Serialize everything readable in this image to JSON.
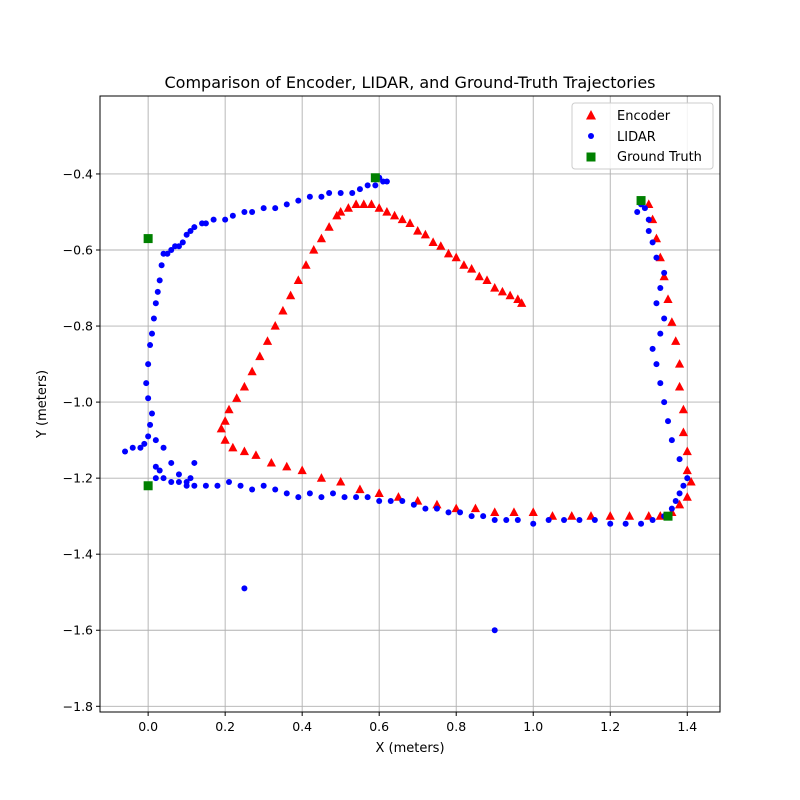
{
  "chart_data": {
    "type": "scatter",
    "title": "Comparison of Encoder, LIDAR, and Ground-Truth Trajectories",
    "xlabel": "X (meters)",
    "ylabel": "Y (meters)",
    "xlim": [
      -0.125,
      1.485
    ],
    "ylim": [
      -1.815,
      -0.195
    ],
    "xticks": [
      0.0,
      0.2,
      0.4,
      0.6,
      0.8,
      1.0,
      1.2,
      1.4
    ],
    "xtick_labels": [
      "0.0",
      "0.2",
      "0.4",
      "0.6",
      "0.8",
      "1.0",
      "1.2",
      "1.4"
    ],
    "yticks": [
      -1.8,
      -1.6,
      -1.4,
      -1.2,
      -1.0,
      -0.8,
      -0.6,
      -0.4
    ],
    "ytick_labels": [
      "−1.8",
      "−1.6",
      "−1.4",
      "−1.2",
      "−1.0",
      "−0.8",
      "−0.6",
      "−0.4"
    ],
    "grid": true,
    "legend_position": "top-right",
    "series": [
      {
        "name": "Encoder",
        "marker": "triangle",
        "color": "#ff0000",
        "x": [
          0.97,
          0.96,
          0.94,
          0.92,
          0.9,
          0.88,
          0.86,
          0.84,
          0.82,
          0.8,
          0.78,
          0.76,
          0.74,
          0.72,
          0.7,
          0.68,
          0.66,
          0.64,
          0.62,
          0.6,
          0.58,
          0.56,
          0.54,
          0.52,
          0.5,
          0.49,
          0.47,
          0.45,
          0.43,
          0.41,
          0.39,
          0.37,
          0.35,
          0.33,
          0.31,
          0.29,
          0.27,
          0.25,
          0.23,
          0.21,
          0.2,
          0.19,
          0.2,
          0.22,
          0.25,
          0.28,
          0.32,
          0.36,
          0.4,
          0.45,
          0.5,
          0.55,
          0.6,
          0.65,
          0.7,
          0.75,
          0.8,
          0.85,
          0.9,
          0.95,
          1.0,
          1.05,
          1.1,
          1.15,
          1.2,
          1.25,
          1.3,
          1.33,
          1.36,
          1.38,
          1.4,
          1.41,
          1.4,
          1.4,
          1.39,
          1.39,
          1.38,
          1.38,
          1.37,
          1.36,
          1.35,
          1.34,
          1.33,
          1.32,
          1.31,
          1.3
        ],
        "y": [
          -0.74,
          -0.73,
          -0.72,
          -0.71,
          -0.7,
          -0.68,
          -0.67,
          -0.65,
          -0.64,
          -0.62,
          -0.61,
          -0.59,
          -0.58,
          -0.56,
          -0.55,
          -0.53,
          -0.52,
          -0.51,
          -0.5,
          -0.49,
          -0.48,
          -0.48,
          -0.48,
          -0.49,
          -0.5,
          -0.51,
          -0.54,
          -0.57,
          -0.6,
          -0.64,
          -0.68,
          -0.72,
          -0.76,
          -0.8,
          -0.84,
          -0.88,
          -0.92,
          -0.96,
          -0.99,
          -1.02,
          -1.05,
          -1.07,
          -1.1,
          -1.12,
          -1.13,
          -1.14,
          -1.16,
          -1.17,
          -1.18,
          -1.2,
          -1.21,
          -1.23,
          -1.24,
          -1.25,
          -1.26,
          -1.27,
          -1.28,
          -1.28,
          -1.29,
          -1.29,
          -1.29,
          -1.3,
          -1.3,
          -1.3,
          -1.3,
          -1.3,
          -1.3,
          -1.3,
          -1.29,
          -1.27,
          -1.25,
          -1.21,
          -1.18,
          -1.13,
          -1.08,
          -1.02,
          -0.96,
          -0.9,
          -0.84,
          -0.79,
          -0.73,
          -0.67,
          -0.62,
          -0.57,
          -0.52,
          -0.48
        ]
      },
      {
        "name": "LIDAR",
        "marker": "circle",
        "color": "#0000ff",
        "x": [
          0.6,
          0.61,
          0.62,
          0.59,
          0.6,
          0.57,
          0.55,
          0.53,
          0.5,
          0.47,
          0.45,
          0.42,
          0.39,
          0.36,
          0.33,
          0.3,
          0.27,
          0.25,
          0.22,
          0.2,
          0.17,
          0.15,
          0.14,
          0.12,
          0.11,
          0.1,
          0.09,
          0.08,
          0.07,
          0.06,
          0.05,
          0.04,
          0.035,
          0.03,
          0.025,
          0.02,
          0.015,
          0.01,
          0.005,
          0.0,
          -0.005,
          0.0,
          0.01,
          0.005,
          0.0,
          -0.01,
          -0.02,
          -0.04,
          -0.06,
          0.02,
          0.04,
          0.06,
          0.08,
          0.1,
          0.12,
          0.15,
          0.18,
          0.21,
          0.24,
          0.27,
          0.3,
          0.33,
          0.36,
          0.39,
          0.42,
          0.45,
          0.48,
          0.51,
          0.54,
          0.57,
          0.6,
          0.63,
          0.66,
          0.69,
          0.72,
          0.75,
          0.78,
          0.81,
          0.84,
          0.87,
          0.9,
          0.93,
          0.96,
          1.0,
          1.04,
          1.08,
          1.12,
          1.16,
          1.2,
          1.24,
          1.28,
          1.31,
          1.34,
          1.36,
          1.37,
          1.38,
          1.39,
          1.4,
          1.38,
          1.36,
          1.35,
          1.34,
          1.33,
          1.32,
          1.31,
          1.33,
          1.34,
          1.32,
          1.33,
          1.34,
          1.32,
          1.31,
          1.3,
          1.3,
          1.29,
          1.28,
          1.27,
          0.25,
          0.9,
          0.06,
          0.08,
          0.1,
          0.03,
          0.02,
          0.11,
          0.12,
          0.04,
          0.02
        ],
        "y": [
          -0.41,
          -0.42,
          -0.42,
          -0.43,
          -0.41,
          -0.43,
          -0.44,
          -0.45,
          -0.45,
          -0.45,
          -0.46,
          -0.46,
          -0.47,
          -0.48,
          -0.49,
          -0.49,
          -0.5,
          -0.5,
          -0.51,
          -0.52,
          -0.52,
          -0.53,
          -0.53,
          -0.54,
          -0.55,
          -0.56,
          -0.58,
          -0.59,
          -0.59,
          -0.6,
          -0.61,
          -0.61,
          -0.64,
          -0.68,
          -0.71,
          -0.74,
          -0.78,
          -0.82,
          -0.85,
          -0.9,
          -0.95,
          -0.99,
          -1.03,
          -1.06,
          -1.09,
          -1.11,
          -1.12,
          -1.12,
          -1.13,
          -1.2,
          -1.2,
          -1.21,
          -1.21,
          -1.22,
          -1.22,
          -1.22,
          -1.22,
          -1.21,
          -1.22,
          -1.23,
          -1.22,
          -1.23,
          -1.24,
          -1.25,
          -1.24,
          -1.25,
          -1.24,
          -1.25,
          -1.25,
          -1.25,
          -1.26,
          -1.26,
          -1.26,
          -1.27,
          -1.28,
          -1.28,
          -1.29,
          -1.29,
          -1.3,
          -1.3,
          -1.31,
          -1.31,
          -1.31,
          -1.32,
          -1.31,
          -1.31,
          -1.31,
          -1.31,
          -1.32,
          -1.32,
          -1.32,
          -1.31,
          -1.3,
          -1.28,
          -1.26,
          -1.24,
          -1.22,
          -1.2,
          -1.15,
          -1.1,
          -1.05,
          -1.0,
          -0.95,
          -0.9,
          -0.86,
          -0.82,
          -0.78,
          -0.74,
          -0.7,
          -0.66,
          -0.62,
          -0.58,
          -0.55,
          -0.52,
          -0.49,
          -0.48,
          -0.5,
          -1.49,
          -1.6,
          -1.16,
          -1.19,
          -1.21,
          -1.18,
          -1.17,
          -1.2,
          -1.16,
          -1.12,
          -1.1
        ]
      },
      {
        "name": "Ground Truth",
        "marker": "square",
        "color": "#008000",
        "x": [
          0.0,
          0.59,
          1.28,
          1.35,
          0.0
        ],
        "y": [
          -0.57,
          -0.41,
          -0.47,
          -1.3,
          -1.22
        ]
      }
    ]
  }
}
